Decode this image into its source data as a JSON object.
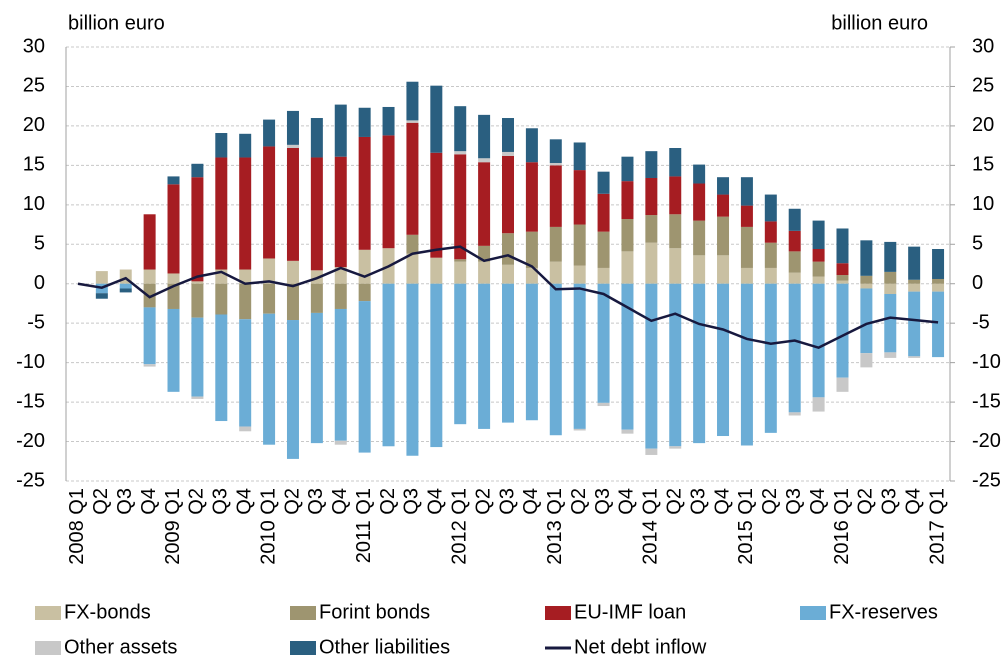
{
  "chart_data": {
    "type": "bar",
    "stacked": true,
    "y_label": "billion euro",
    "y2_label": "billion euro",
    "categories": [
      "2008 Q1",
      "Q2",
      "Q3",
      "Q4",
      "2009 Q1",
      "Q2",
      "Q3",
      "Q4",
      "2010 Q1",
      "Q2",
      "Q3",
      "Q4",
      "2011 Q1",
      "Q2",
      "Q3",
      "Q4",
      "2012 Q1",
      "Q2",
      "Q3",
      "Q4",
      "2013 Q1",
      "Q2",
      "Q3",
      "Q4",
      "2014 Q1",
      "Q2",
      "Q3",
      "Q4",
      "2015 Q1",
      "Q2",
      "Q3",
      "Q4",
      "2016 Q1",
      "Q2",
      "Q3",
      "Q4",
      "2017 Q1"
    ],
    "ylim": [
      -25,
      30
    ],
    "yticks": [
      -25,
      -20,
      -15,
      -10,
      -5,
      0,
      5,
      10,
      15,
      20,
      25,
      30
    ],
    "y2lim": [
      -25,
      30
    ],
    "y2ticks": [
      -25,
      -20,
      -15,
      -10,
      -5,
      0,
      5,
      10,
      15,
      20,
      25,
      30
    ],
    "grid": true,
    "series": [
      {
        "name": "FX-bonds",
        "color": "#c9c0a2",
        "values": [
          0,
          1.6,
          1.8,
          1.8,
          1.3,
          0.3,
          1.8,
          1.8,
          3.2,
          2.9,
          1.7,
          2.1,
          4.3,
          4.5,
          3.8,
          3.3,
          2.8,
          2.8,
          2.4,
          2,
          2.8,
          2.3,
          2,
          4.1,
          5.2,
          4.5,
          3.6,
          3.6,
          2,
          2,
          1.4,
          0.9,
          0.4,
          -0.6,
          -1.3,
          -1,
          -1
        ]
      },
      {
        "name": "Forint bonds",
        "color": "#9e9570",
        "values": [
          0,
          0,
          0,
          -3,
          -3.2,
          -4.3,
          -3.9,
          -4.5,
          -3.8,
          -4.6,
          -3.7,
          -3.2,
          -2.2,
          0,
          2.4,
          0,
          0.3,
          2,
          4,
          4.6,
          4.4,
          5.2,
          4.6,
          4.1,
          3.5,
          4.3,
          4.4,
          4.9,
          5.2,
          3.2,
          2.7,
          1.9,
          0.7,
          1,
          1.5,
          0.5,
          0.6
        ]
      },
      {
        "name": "EU-IMF loan",
        "color": "#a61d22",
        "values": [
          0,
          0,
          0,
          7,
          11.3,
          13.2,
          14.2,
          14.2,
          14.2,
          14.3,
          14.3,
          14,
          14.3,
          14.3,
          14.2,
          13.3,
          13.3,
          10.6,
          9.8,
          8.8,
          7.8,
          6.9,
          4.8,
          4.8,
          4.7,
          4.8,
          4.7,
          2.8,
          2.7,
          2.7,
          2.6,
          1.6,
          1.5,
          0,
          0,
          0,
          0
        ]
      },
      {
        "name": "FX-reserves",
        "color": "#6badd6",
        "values": [
          0,
          -1.2,
          -0.6,
          -7.2,
          -10.5,
          -10,
          -13.5,
          -13.6,
          -16.6,
          -17.6,
          -16.5,
          -16.7,
          -19.2,
          -20.6,
          -21.8,
          -20.7,
          -17.8,
          -18.4,
          -17.6,
          -17.3,
          -19.2,
          -18.4,
          -15.1,
          -18.5,
          -20.9,
          -20.6,
          -20.2,
          -19.3,
          -20.5,
          -18.9,
          -16.3,
          -14.4,
          -11.9,
          -8.2,
          -7.4,
          -8.2,
          -8.3
        ]
      },
      {
        "name": "Other assets",
        "color": "#c8c8c8",
        "values": [
          0,
          0,
          0,
          -0.3,
          0,
          -0.3,
          0,
          -0.6,
          0,
          0.4,
          0,
          -0.5,
          0,
          0,
          0.3,
          0,
          0.4,
          0.5,
          0.5,
          0,
          0.3,
          -0.2,
          -0.4,
          -0.5,
          -0.8,
          -0.3,
          0,
          0,
          0,
          0,
          -0.4,
          -1.8,
          -1.8,
          -1.8,
          -0.7,
          -0.2,
          0
        ]
      },
      {
        "name": "Other liabilities",
        "color": "#2a5f80",
        "values": [
          0,
          -0.7,
          -0.5,
          0,
          1,
          1.7,
          3.1,
          3,
          3.4,
          4.3,
          5,
          6.6,
          3.7,
          3.6,
          4.9,
          8.5,
          5.7,
          5.5,
          4.3,
          4.3,
          3,
          3.5,
          2.8,
          3.1,
          3.4,
          3.6,
          2.4,
          2.2,
          3.6,
          3.4,
          2.8,
          3.6,
          4.4,
          4.5,
          3.8,
          4.2,
          3.8
        ]
      },
      {
        "name": "Net debt inflow",
        "color": "#17193f",
        "mark": "line",
        "values": [
          0,
          -0.5,
          0.7,
          -1.7,
          -0.3,
          0.9,
          1.5,
          0,
          0.3,
          -0.3,
          0.7,
          2,
          0.9,
          2.2,
          3.8,
          4.3,
          4.7,
          2.9,
          3.6,
          2.2,
          -0.7,
          -0.6,
          -1.3,
          -3,
          -4.7,
          -3.8,
          -5.1,
          -5.8,
          -7,
          -7.6,
          -7.2,
          -8.1,
          -6.6,
          -5.1,
          -4.3,
          -4.6,
          -4.9
        ]
      }
    ]
  }
}
